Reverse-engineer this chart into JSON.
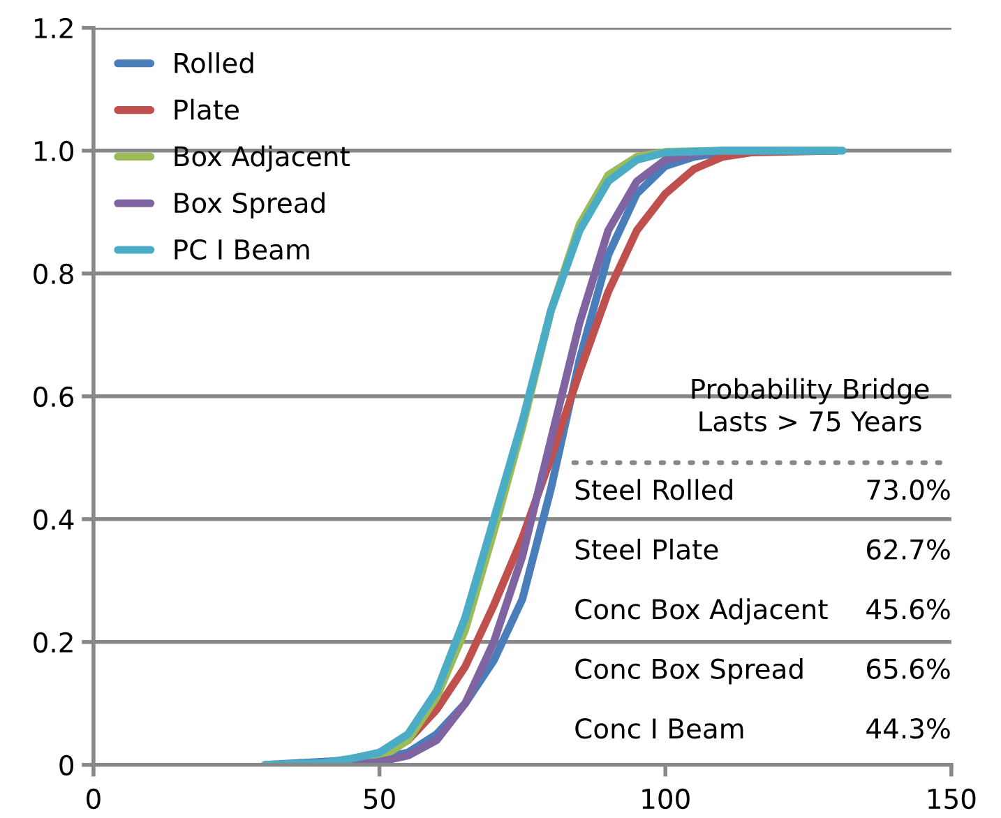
{
  "chart_data": {
    "type": "line",
    "xlim": [
      0,
      150
    ],
    "xticks": [
      0,
      50,
      100,
      150
    ],
    "ylim": [
      0,
      1.2
    ],
    "yticks": [
      {
        "value": 0,
        "label": "0"
      },
      {
        "value": 0.2,
        "label": "0.2"
      },
      {
        "value": 0.4,
        "label": "0.4"
      },
      {
        "value": 0.6,
        "label": "0.6"
      },
      {
        "value": 0.8,
        "label": "0.8"
      },
      {
        "value": 1.0,
        "label": "1.0"
      },
      {
        "value": 1.2,
        "label": "1.2"
      }
    ],
    "grid": "y",
    "legend": "top left",
    "marker": "none",
    "line_style": "solid",
    "series": [
      {
        "name": "Rolled",
        "color": "#4a7ebb",
        "x": [
          30,
          50,
          55,
          60,
          65,
          70,
          75,
          80,
          85,
          90,
          95,
          100,
          105,
          110,
          120,
          130
        ],
        "values": [
          0,
          0.01,
          0.02,
          0.05,
          0.1,
          0.17,
          0.27,
          0.45,
          0.66,
          0.83,
          0.93,
          0.975,
          0.99,
          0.997,
          1.0,
          1.0
        ]
      },
      {
        "name": "Plate",
        "color": "#c0504d",
        "x": [
          50,
          55,
          60,
          65,
          70,
          75,
          80,
          85,
          90,
          95,
          100,
          105,
          110,
          115,
          130
        ],
        "values": [
          0.02,
          0.04,
          0.09,
          0.16,
          0.26,
          0.37,
          0.5,
          0.64,
          0.77,
          0.87,
          0.93,
          0.97,
          0.99,
          0.997,
          1.0
        ]
      },
      {
        "name": "Box Adjacent",
        "color": "#9bbb59",
        "x": [
          45,
          50,
          55,
          60,
          65,
          70,
          75,
          80,
          85,
          90,
          95,
          100,
          110,
          130
        ],
        "values": [
          0,
          0.01,
          0.04,
          0.11,
          0.22,
          0.38,
          0.55,
          0.74,
          0.88,
          0.96,
          0.99,
          0.998,
          1.0,
          1.0
        ]
      },
      {
        "name": "Box Spread",
        "color": "#8064a2",
        "x": [
          45,
          50,
          55,
          60,
          65,
          70,
          75,
          80,
          85,
          90,
          95,
          100,
          105,
          110,
          130
        ],
        "values": [
          0,
          0.005,
          0.015,
          0.04,
          0.1,
          0.2,
          0.34,
          0.53,
          0.72,
          0.87,
          0.95,
          0.985,
          0.995,
          1.0,
          1.0
        ]
      },
      {
        "name": "PC I Beam",
        "color": "#4bacc6",
        "x": [
          30,
          40,
          45,
          50,
          55,
          60,
          65,
          70,
          75,
          80,
          85,
          90,
          95,
          100,
          110,
          131
        ],
        "values": [
          0,
          0.003,
          0.01,
          0.02,
          0.05,
          0.12,
          0.24,
          0.4,
          0.56,
          0.74,
          0.87,
          0.95,
          0.985,
          0.997,
          1.0,
          1.0
        ]
      }
    ],
    "annotations": [
      "Probability Bridge\nLasts > 75 Years",
      "Steel Rolled",
      "73.0%",
      "Steel Plate",
      "62.7%",
      "Conc Box Adjacent",
      "45.6%",
      "Conc Box Spread",
      "65.6%",
      "Conc I Beam",
      "44.3%"
    ]
  }
}
